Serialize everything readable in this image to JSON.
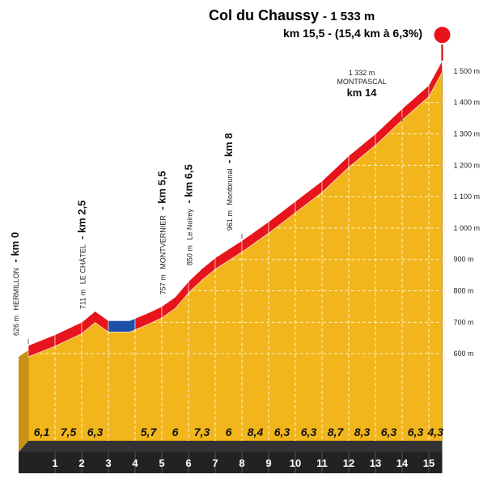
{
  "chart_data": {
    "type": "area",
    "title": "Col du Chaussy",
    "title_elevation": "- 1 533 m",
    "subtitle": "km 15,5 - (15,4 km à 6,3%)",
    "x": [
      0,
      1,
      2,
      2.5,
      3,
      3.8,
      4.5,
      5,
      5.5,
      6,
      6.5,
      7,
      8,
      9,
      10,
      11,
      12,
      13,
      14,
      15,
      15.5
    ],
    "values": [
      626,
      660,
      700,
      735,
      705,
      705,
      730,
      750,
      780,
      830,
      870,
      905,
      960,
      1020,
      1085,
      1150,
      1230,
      1300,
      1380,
      1455,
      1533
    ],
    "color": "#f2b61c",
    "ylim": [
      322,
      1572
    ],
    "yticks": [
      {
        "value": 600,
        "label": "600 m"
      },
      {
        "value": 700,
        "label": "700 m"
      },
      {
        "value": 800,
        "label": "800 m"
      },
      {
        "value": 900,
        "label": "900 m"
      },
      {
        "value": 1000,
        "label": "1 000 m"
      },
      {
        "value": 1100,
        "label": "1 100 m"
      },
      {
        "value": 1200,
        "label": "1 200 m"
      },
      {
        "value": 1300,
        "label": "1 300 m"
      },
      {
        "value": 1400,
        "label": "1 400 m"
      },
      {
        "value": 1500,
        "label": "1 500 m"
      }
    ],
    "xticks": [
      1,
      2,
      3,
      4,
      5,
      6,
      7,
      8,
      9,
      10,
      11,
      12,
      13,
      14,
      15
    ],
    "gradients": {
      "values": [
        6.1,
        7.5,
        6.3,
        null,
        5.7,
        6,
        7.3,
        6,
        8.4,
        6.3,
        6.3,
        8.7,
        8.3,
        6.3,
        6.3,
        4.3
      ],
      "value_labels": [
        "6,1",
        "7,5",
        "6,3",
        null,
        "5,7",
        "6",
        "7,3",
        "6",
        "8,4",
        "6,3",
        "6,3",
        "8,7",
        "8,3",
        "6,3",
        "6,3",
        "4,3"
      ]
    },
    "annotations": [
      {
        "x": 0,
        "x_label": "- km 0",
        "elev": 626,
        "elev_label": "626 m",
        "name": "HERMILLON"
      },
      {
        "x": 2.5,
        "x_label": "- km 2,5",
        "elev": 711,
        "elev_label": "711 m",
        "name": "LE CHÂTEL"
      },
      {
        "x": 5.5,
        "x_label": "- km 5,5",
        "elev": 757,
        "elev_label": "757 m",
        "name": "MONTVERNIER"
      },
      {
        "x": 6.5,
        "x_label": "- km 6,5",
        "elev": 850,
        "elev_label": "850 m",
        "name": "Le Noirey"
      },
      {
        "x": 8,
        "x_label": "- km 8",
        "elev": 961,
        "elev_label": "961 m",
        "name": "Montbrunal"
      },
      {
        "x": 14,
        "x_label": "km 14",
        "elev": 1332,
        "elev_label": "1 332 m",
        "name": "MONTPASCAL"
      }
    ]
  }
}
